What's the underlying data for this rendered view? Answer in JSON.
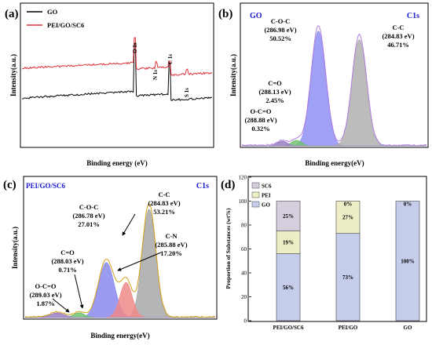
{
  "chart_data": [
    {
      "panel": "(a)",
      "type": "line",
      "xlabel": "Binding energy (eV)",
      "ylabel": "Intensity(a.u.)",
      "legend": {
        "placement": "top-left",
        "entries": [
          "GO",
          "PEI/GO/SC6"
        ]
      },
      "series": [
        {
          "name": "GO",
          "color": "#000000"
        },
        {
          "name": "PEI/GO/SC6",
          "color": "#e0303a"
        }
      ],
      "annotations": [
        "O 1s",
        "N 1s",
        "C 1s",
        "S 1s"
      ]
    },
    {
      "panel": "(b)",
      "type": "area",
      "title_left": "GO",
      "title_right": "C1s",
      "xlabel": "Binding energy(eV)",
      "ylabel": "Intensity(a.u.)",
      "peaks": [
        {
          "id": "coc",
          "l1": "C-O-C",
          "l2": "(286.98 eV)",
          "l3": "50.52%",
          "center": 286.98,
          "percent": 50.52,
          "color": "#8f8ff2"
        },
        {
          "id": "cc",
          "l1": "C-C",
          "l2": "(284.83 eV)",
          "l3": "46.71%",
          "center": 284.83,
          "percent": 46.71,
          "color": "#b0b0b0"
        },
        {
          "id": "co",
          "l1": "C=O",
          "l2": "(288.13 eV)",
          "l3": "2.45%",
          "center": 288.13,
          "percent": 2.45,
          "color": "#6fc26f"
        },
        {
          "id": "oco",
          "l1": "O-C=O",
          "l2": "(288.88 eV)",
          "l3": "0.32%",
          "center": 288.88,
          "percent": 0.32,
          "color": "#9a7fc2"
        }
      ]
    },
    {
      "panel": "(c)",
      "type": "area",
      "title_left": "PEI/GO/SC6",
      "title_right": "C1s",
      "xlabel": "Binding energy(eV)",
      "ylabel": "Intensity(a.u.)",
      "peaks": [
        {
          "id": "cc",
          "l1": "C-C",
          "l2": "(284.83 eV)",
          "l3": "53.21%",
          "center": 284.83,
          "percent": 53.21,
          "color": "#a8a8a8"
        },
        {
          "id": "coc",
          "l1": "C-O-C",
          "l2": "(286.78 eV)",
          "l3": "27.01%",
          "center": 286.78,
          "percent": 27.01,
          "color": "#8a8af0"
        },
        {
          "id": "cn",
          "l1": "C-N",
          "l2": "(285.88 eV)",
          "l3": "17.20%",
          "center": 285.88,
          "percent": 17.2,
          "color": "#f08a8a"
        },
        {
          "id": "co",
          "l1": "C=O",
          "l2": "(288.03 eV)",
          "l3": "0.71%",
          "center": 288.03,
          "percent": 0.71,
          "color": "#6fc26f"
        },
        {
          "id": "oco",
          "l1": "O-C=O",
          "l2": "(289.03 eV)",
          "l3": "1.87%",
          "center": 289.03,
          "percent": 1.87,
          "color": "#9a7fc2"
        }
      ]
    },
    {
      "panel": "(d)",
      "type": "bar",
      "stacked": true,
      "ylabel": "Proportion of Substances (wt%)",
      "ylim": [
        0,
        120
      ],
      "yticks": [
        "0",
        "20",
        "40",
        "60",
        "80",
        "100",
        "120"
      ],
      "categories": [
        "PEI/GO/SC6",
        "PEI/GO",
        "GO"
      ],
      "legend": {
        "placement": "top-left",
        "entries": [
          "SC6",
          "PEI",
          "GO"
        ]
      },
      "series": [
        {
          "name": "GO",
          "color": "#c5cdea",
          "values": [
            56,
            73,
            100
          ],
          "labels": [
            "56%",
            "73%",
            "100%"
          ]
        },
        {
          "name": "PEI",
          "color": "#eeeec6",
          "values": [
            19,
            27,
            0
          ],
          "labels": [
            "19%",
            "27%",
            ""
          ]
        },
        {
          "name": "SC6",
          "color": "#d6cedd",
          "values": [
            25,
            0,
            0
          ],
          "labels": [
            "25%",
            "0%",
            "0%"
          ]
        }
      ]
    }
  ]
}
